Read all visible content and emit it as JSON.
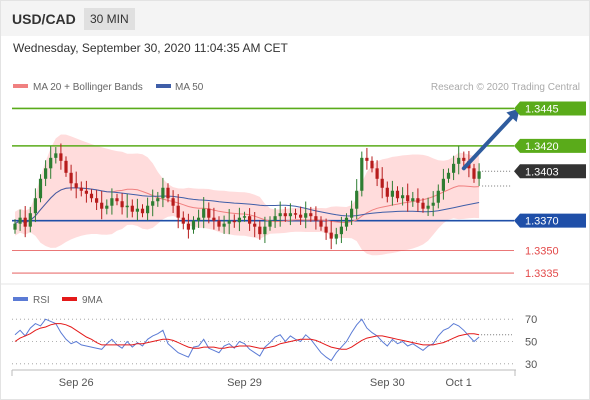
{
  "header": {
    "symbol": "USD/CAD",
    "timeframe": "30 MIN",
    "datetime": "Wednesday, September 30, 2020 11:04:35 AM CET"
  },
  "colors": {
    "up_candle": "#2e7d32",
    "down_candle": "#b71c1c",
    "resistance": "#5aab1a",
    "support": "#1f4fa8",
    "critical": "#e34a4a",
    "price": "#333333",
    "bollinger_fill": "#ffdcdc",
    "ma20": "#f08080",
    "ma50": "#3f5ea8",
    "rsi": "#5b7bd5",
    "rsi_ma": "#e41a1a",
    "arrow": "#2f5c9e"
  },
  "chart_data": [
    {
      "type": "candlestick",
      "title": "",
      "legend": [
        {
          "name": "MA 20 + Bollinger Bands",
          "color": "#f08080"
        },
        {
          "name": "MA 50",
          "color": "#3f5ea8"
        }
      ],
      "legend_position": "top-left",
      "watermark": "Research © 2020 Trading Central",
      "x_tick_labels": [
        {
          "label": "Sep 26",
          "bar": 12
        },
        {
          "label": "Sep 29",
          "bar": 45
        },
        {
          "label": "Sep 30",
          "bar": 73
        },
        {
          "label": "Oct 1",
          "bar": 87
        }
      ],
      "y_range": [
        1.3325,
        1.3452
      ],
      "levels": [
        {
          "value": 1.3445,
          "label": "1.3445",
          "kind": "resistance"
        },
        {
          "value": 1.342,
          "label": "1.3420",
          "kind": "resistance"
        },
        {
          "value": 1.3403,
          "label": "1.3403",
          "kind": "price"
        },
        {
          "value": 1.337,
          "label": "1.3370",
          "kind": "support"
        },
        {
          "value": 1.335,
          "label": "1.3350",
          "kind": "critical"
        },
        {
          "value": 1.3335,
          "label": "1.3335",
          "kind": "critical"
        }
      ],
      "forecast_arrow": {
        "from_bar": 88,
        "from": 1.3405,
        "to_bar": 97,
        "to": 1.3445
      },
      "closes": [
        1.3368,
        1.3372,
        1.3366,
        1.3375,
        1.3385,
        1.3398,
        1.3405,
        1.3412,
        1.3415,
        1.341,
        1.3402,
        1.3395,
        1.3392,
        1.339,
        1.3388,
        1.3385,
        1.3382,
        1.3378,
        1.338,
        1.3385,
        1.3383,
        1.3379,
        1.338,
        1.3376,
        1.3378,
        1.3375,
        1.338,
        1.3383,
        1.3385,
        1.3392,
        1.3385,
        1.338,
        1.3372,
        1.3368,
        1.3364,
        1.337,
        1.3372,
        1.3378,
        1.3372,
        1.337,
        1.3366,
        1.3368,
        1.337,
        1.3369,
        1.3372,
        1.3373,
        1.3368,
        1.3366,
        1.3361,
        1.3366,
        1.337,
        1.3373,
        1.3375,
        1.3373,
        1.3375,
        1.3374,
        1.3372,
        1.3375,
        1.3373,
        1.337,
        1.3366,
        1.3362,
        1.3358,
        1.3361,
        1.3366,
        1.3372,
        1.3378,
        1.339,
        1.3412,
        1.341,
        1.3405,
        1.3398,
        1.3392,
        1.3386,
        1.339,
        1.3385,
        1.3387,
        1.3383,
        1.3385,
        1.3382,
        1.3378,
        1.338,
        1.3382,
        1.339,
        1.3398,
        1.3402,
        1.3408,
        1.3412,
        1.341,
        1.3405,
        1.3398,
        1.3403
      ]
    },
    {
      "type": "line",
      "title": "RSI",
      "series": [
        {
          "name": "RSI",
          "color": "#5b7bd5"
        },
        {
          "name": "9MA",
          "color": "#e41a1a"
        }
      ],
      "ylim": [
        20,
        80
      ],
      "y_ticks": [
        70,
        50,
        30
      ],
      "rsi": [
        56,
        60,
        55,
        62,
        66,
        64,
        70,
        68,
        66,
        58,
        52,
        48,
        50,
        47,
        46,
        45,
        44,
        43,
        48,
        52,
        47,
        44,
        50,
        45,
        49,
        46,
        52,
        55,
        57,
        60,
        48,
        44,
        40,
        38,
        36,
        45,
        46,
        52,
        44,
        42,
        40,
        46,
        48,
        44,
        50,
        48,
        43,
        40,
        37,
        45,
        49,
        54,
        56,
        50,
        55,
        52,
        50,
        56,
        52,
        46,
        40,
        36,
        33,
        40,
        45,
        50,
        58,
        65,
        70,
        62,
        58,
        55,
        50,
        46,
        52,
        48,
        50,
        46,
        48,
        45,
        42,
        46,
        48,
        55,
        60,
        62,
        66,
        64,
        60,
        55,
        50,
        54
      ],
      "rsi_ma": [
        50,
        53,
        55,
        57,
        60,
        62,
        63,
        65,
        66,
        66,
        65,
        63,
        60,
        57,
        54,
        52,
        49,
        47,
        47,
        47,
        47,
        47,
        47,
        47,
        48,
        48,
        49,
        50,
        51,
        52,
        52,
        51,
        49,
        47,
        45,
        44,
        44,
        45,
        45,
        45,
        44,
        44,
        45,
        45,
        46,
        46,
        46,
        45,
        44,
        44,
        45,
        46,
        48,
        49,
        50,
        51,
        52,
        52,
        52,
        51,
        49,
        47,
        45,
        44,
        43,
        43,
        45,
        48,
        51,
        53,
        54,
        55,
        55,
        54,
        53,
        52,
        51,
        50,
        49,
        48,
        47,
        47,
        47,
        48,
        49,
        51,
        53,
        55,
        56,
        57,
        57,
        56
      ]
    }
  ]
}
